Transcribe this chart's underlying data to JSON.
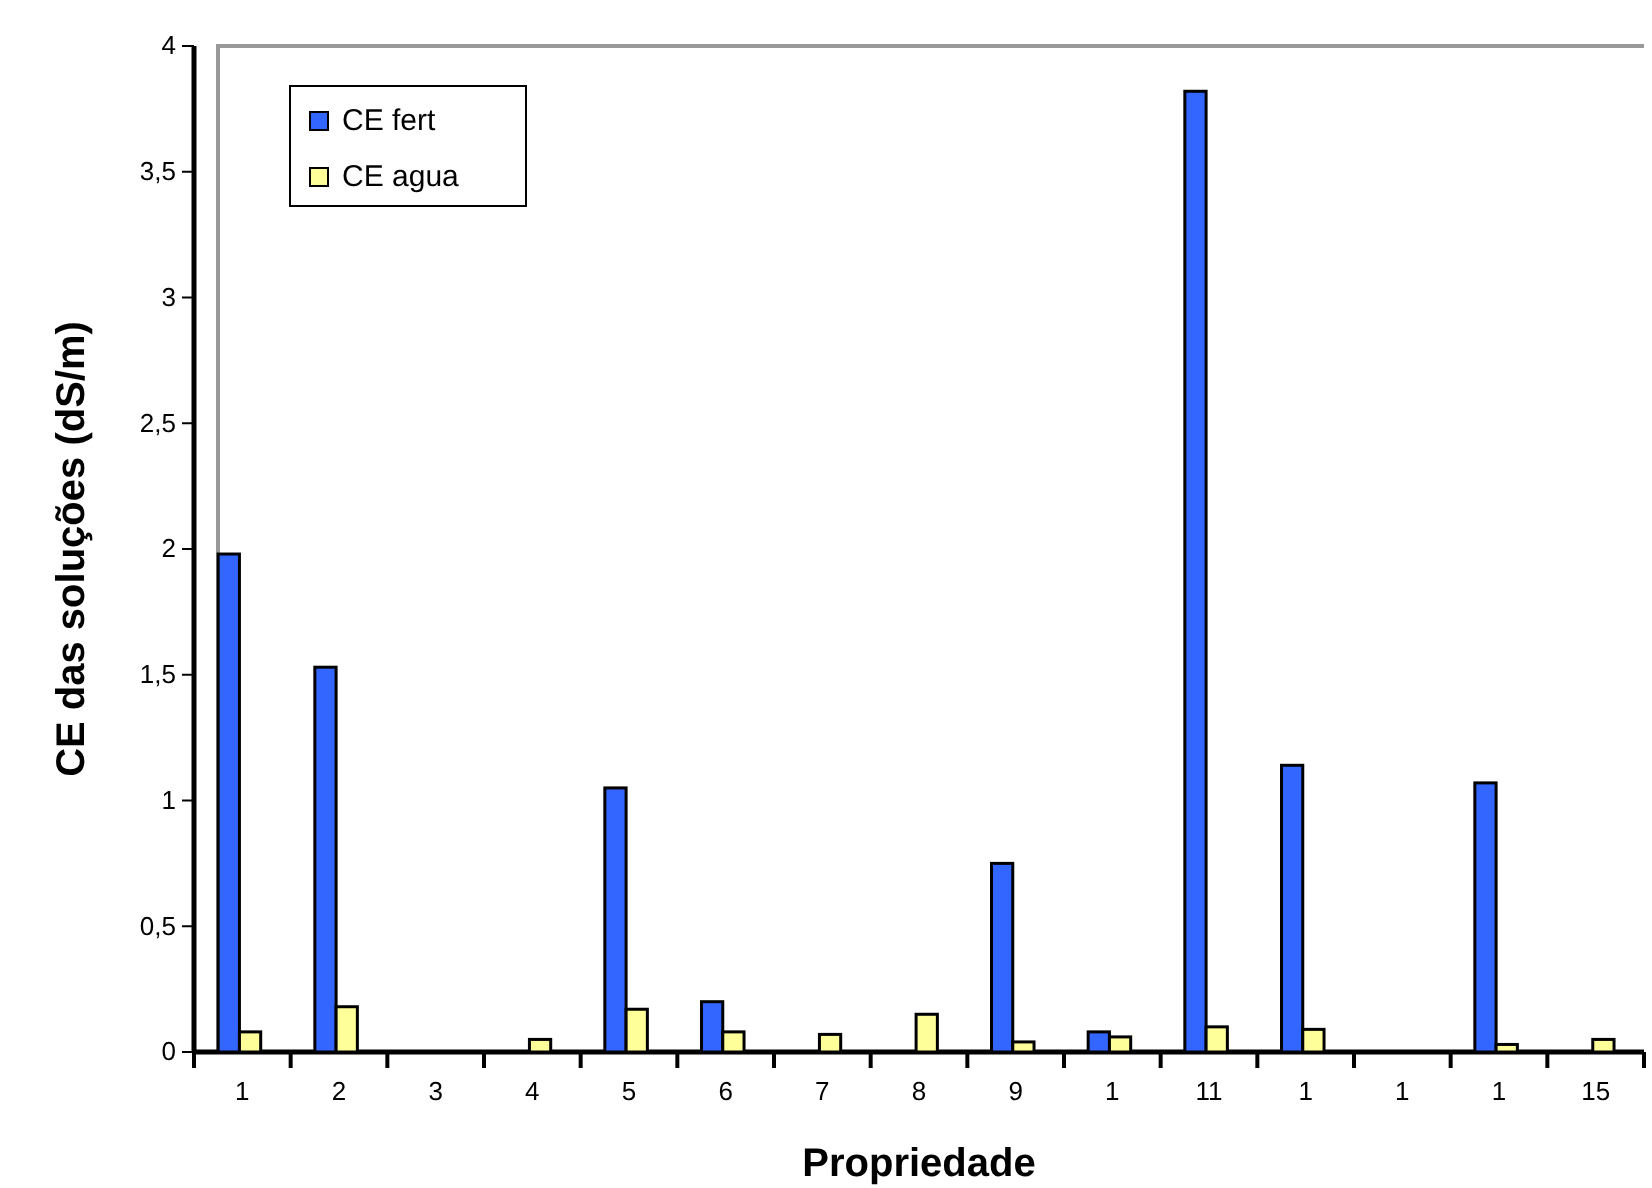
{
  "chart_data": {
    "type": "bar",
    "xlabel": "Propriedade",
    "ylabel": "CE das soluções (dS/m)",
    "categories": [
      "1",
      "2",
      "3",
      "4",
      "5",
      "6",
      "7",
      "8",
      "9",
      "1",
      "11",
      "1",
      "1",
      "1",
      "15"
    ],
    "series": [
      {
        "name": "CE fert",
        "color": "#3366ff",
        "values": [
          1.98,
          1.53,
          0,
          0,
          1.05,
          0.2,
          0,
          0,
          0.75,
          0.08,
          3.82,
          1.14,
          0,
          1.07,
          0
        ]
      },
      {
        "name": "CE agua",
        "color": "#ffff99",
        "values": [
          0.08,
          0.18,
          0,
          0.05,
          0.17,
          0.08,
          0.07,
          0.15,
          0.04,
          0.06,
          0.1,
          0.09,
          0,
          0.03,
          0.05
        ]
      }
    ],
    "ylim": [
      0,
      4
    ],
    "yticks": [
      0,
      {
        "value": 0.5,
        "label": "0,5"
      },
      1,
      {
        "value": 1.5,
        "label": "1,5"
      },
      2,
      {
        "value": 2.5,
        "label": "2,5"
      },
      3,
      {
        "value": 3.5,
        "label": "3,5"
      },
      4
    ],
    "grid": false,
    "legend": "top left"
  }
}
